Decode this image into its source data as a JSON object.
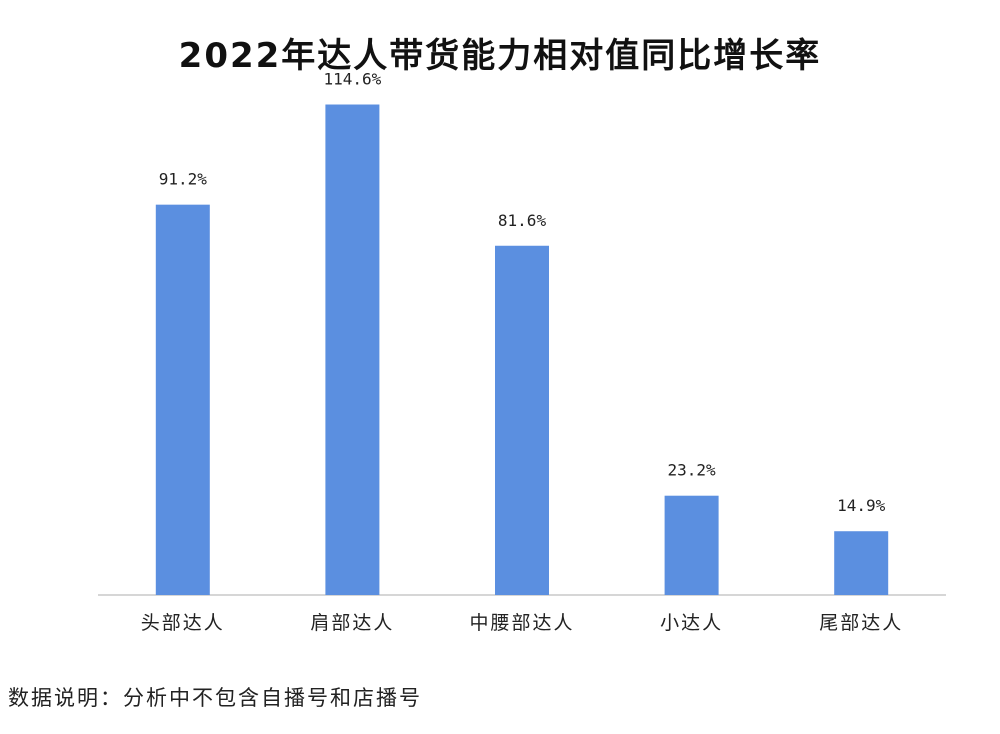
{
  "chart_data": {
    "type": "bar",
    "title": "2022年达人带货能力相对值同比增长率",
    "categories": [
      "头部达人",
      "肩部达人",
      "中腰部达人",
      "小达人",
      "尾部达人"
    ],
    "values": [
      91.2,
      114.6,
      81.6,
      23.2,
      14.9
    ],
    "value_labels": [
      "91.2%",
      "114.6%",
      "81.6%",
      "23.2%",
      "14.9%"
    ],
    "unit": "%",
    "ylim": [
      0,
      125
    ],
    "grid": false,
    "legend": "none",
    "bar_color": "#5b8fe0",
    "axis_color": "#c8c8c8"
  },
  "footnote": "数据说明：分析中不包含自播号和店播号"
}
